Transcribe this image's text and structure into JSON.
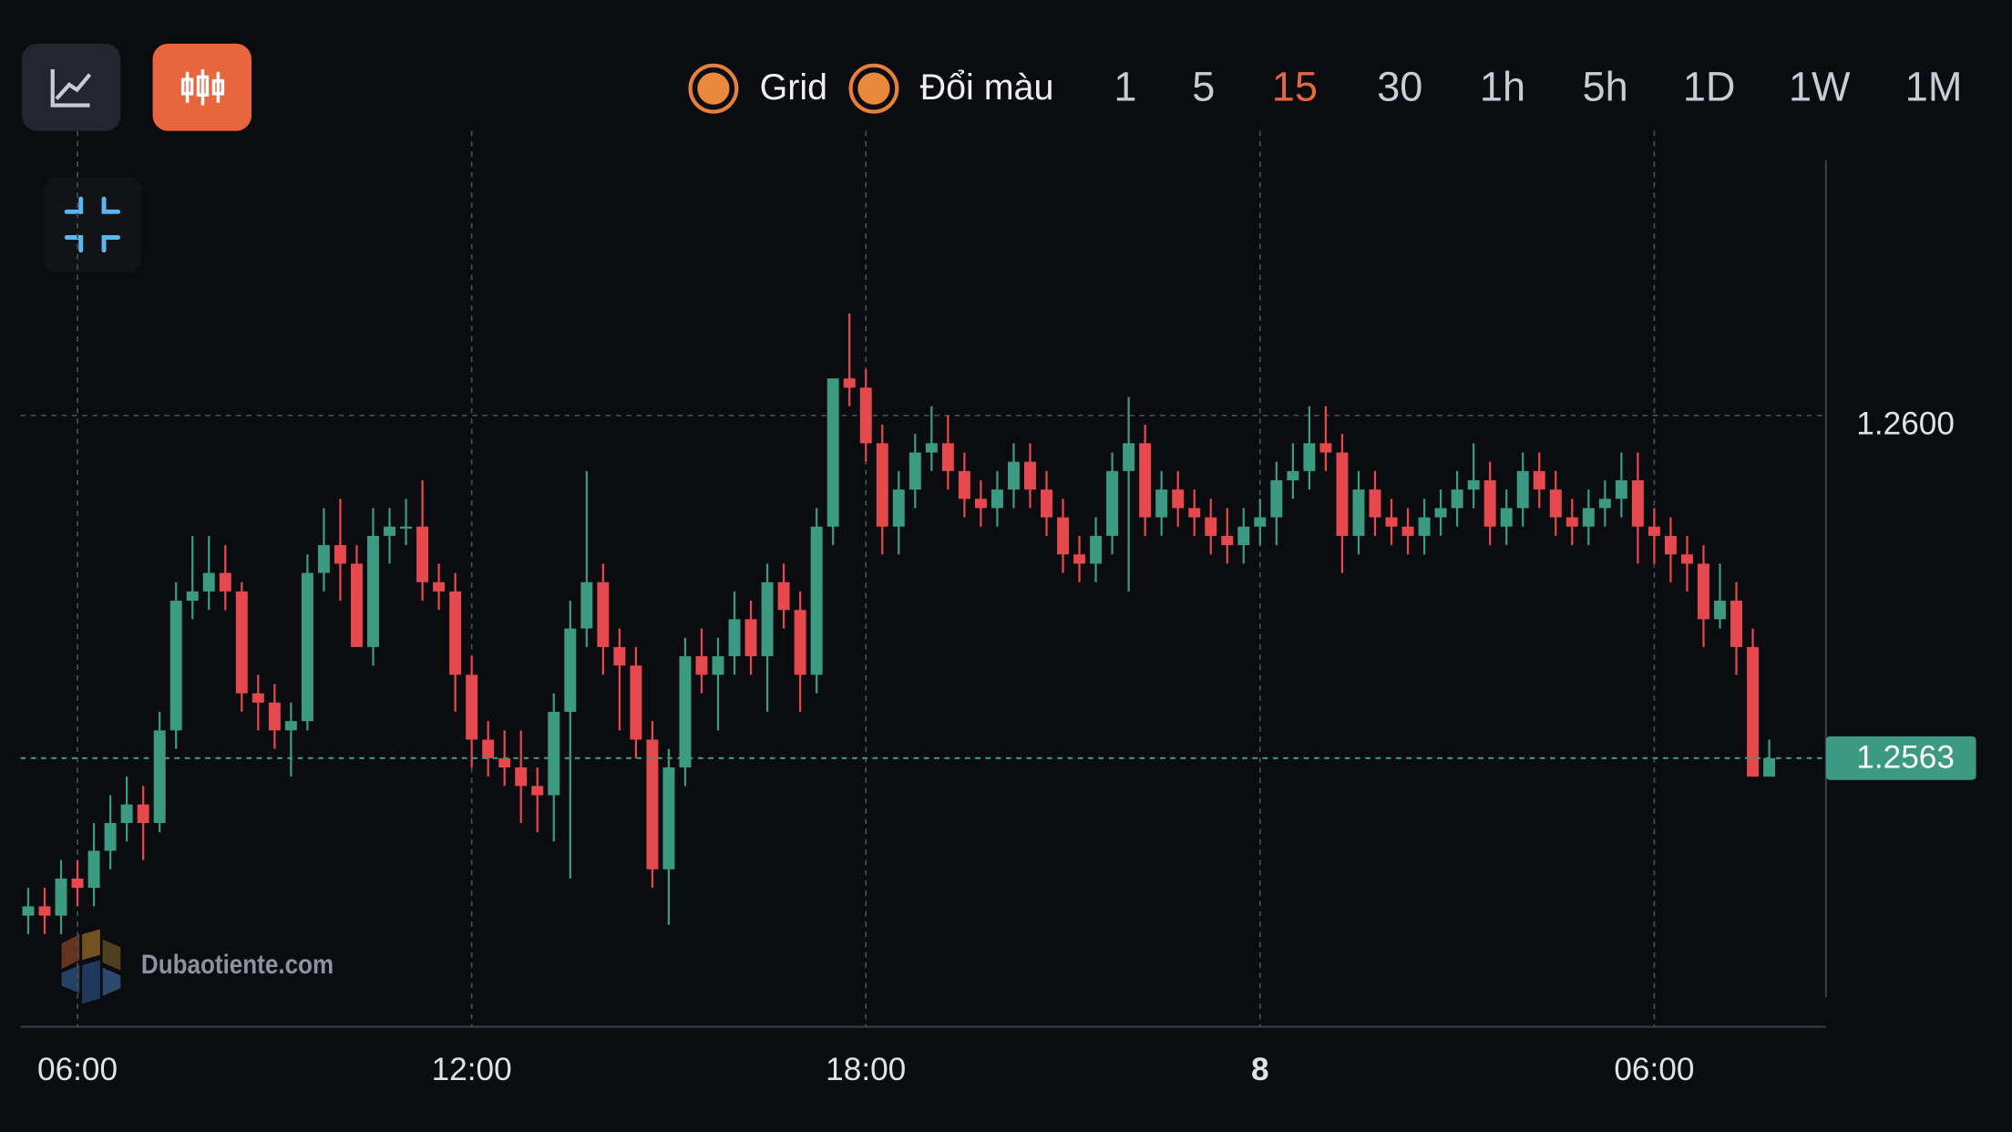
{
  "toolbar": {
    "toggles": [
      "Grid",
      "Đổi màu"
    ],
    "timeframes": [
      "1",
      "5",
      "15",
      "30",
      "1h",
      "5h",
      "1D",
      "1W",
      "1M"
    ],
    "active_timeframe": 2
  },
  "watermark": "Dubaotiente.com",
  "chart_data": {
    "type": "candlestick",
    "categories": [
      null,
      null,
      null,
      "06:00",
      null,
      null,
      null,
      null,
      null,
      null,
      null,
      null,
      null,
      null,
      null,
      null,
      null,
      null,
      null,
      null,
      null,
      null,
      null,
      null,
      null,
      null,
      null,
      "12:00",
      null,
      null,
      null,
      null,
      null,
      null,
      null,
      null,
      null,
      null,
      null,
      null,
      null,
      null,
      null,
      null,
      null,
      null,
      null,
      null,
      null,
      null,
      null,
      "18:00",
      null,
      null,
      null,
      null,
      null,
      null,
      null,
      null,
      null,
      null,
      null,
      null,
      null,
      null,
      null,
      null,
      null,
      null,
      null,
      null,
      null,
      null,
      null,
      "8",
      null,
      null,
      null,
      null,
      null,
      null,
      null,
      null,
      null,
      null,
      null,
      null,
      null,
      null,
      null,
      null,
      null,
      null,
      null,
      null,
      null,
      null,
      null,
      "06:00",
      null,
      null,
      null,
      null,
      null,
      null,
      null
    ],
    "open": [
      1.2546,
      1.2547,
      1.2546,
      1.255,
      1.2549,
      1.2553,
      1.2556,
      1.2558,
      1.2556,
      1.2566,
      1.258,
      1.2581,
      1.2583,
      1.2581,
      1.257,
      1.2569,
      1.2566,
      1.2567,
      1.2583,
      1.2586,
      1.2584,
      1.2575,
      1.2587,
      1.2588,
      1.2588,
      1.2582,
      1.2581,
      1.2572,
      1.2565,
      1.2563,
      1.2562,
      1.256,
      1.2559,
      1.2568,
      1.2577,
      1.2582,
      1.2575,
      1.2573,
      1.2565,
      1.2551,
      1.2562,
      1.2574,
      1.2572,
      1.2574,
      1.2578,
      1.2574,
      1.2582,
      1.2579,
      1.2572,
      1.2588,
      1.2604,
      1.2603,
      1.2597,
      1.2588,
      1.2592,
      1.2596,
      1.2597,
      1.2594,
      1.2591,
      1.259,
      1.2592,
      1.2595,
      1.2592,
      1.2589,
      1.2585,
      1.2584,
      1.2587,
      1.2594,
      1.2597,
      1.2589,
      1.2592,
      1.259,
      1.2589,
      1.2587,
      1.2586,
      1.2588,
      1.2589,
      1.2593,
      1.2594,
      1.2597,
      1.2596,
      1.2587,
      1.2592,
      1.2589,
      1.2588,
      1.2587,
      1.2589,
      1.259,
      1.2592,
      1.2593,
      1.2588,
      1.259,
      1.2594,
      1.2592,
      1.2589,
      1.2588,
      1.259,
      1.2591,
      1.2593,
      1.2588,
      1.2587,
      1.2585,
      1.2584,
      1.2578,
      1.258,
      1.2575,
      1.2561
    ],
    "high": [
      1.2549,
      1.2549,
      1.2552,
      1.2552,
      1.2556,
      1.2559,
      1.2561,
      1.256,
      1.2568,
      1.2582,
      1.2587,
      1.2587,
      1.2586,
      1.2582,
      1.2572,
      1.2571,
      1.2569,
      1.2585,
      1.259,
      1.2591,
      1.2586,
      1.259,
      1.259,
      1.2591,
      1.2593,
      1.2584,
      1.2583,
      1.2574,
      1.2567,
      1.2566,
      1.2566,
      1.2562,
      1.257,
      1.258,
      1.2594,
      1.2584,
      1.2577,
      1.2575,
      1.2567,
      1.2564,
      1.2576,
      1.2577,
      1.2576,
      1.2581,
      1.258,
      1.2584,
      1.2584,
      1.2581,
      1.259,
      1.2604,
      1.2611,
      1.2605,
      1.2599,
      1.2594,
      1.2598,
      1.2601,
      1.26,
      1.2596,
      1.2593,
      1.2594,
      1.2597,
      1.2597,
      1.2594,
      1.2591,
      1.2587,
      1.2589,
      1.2596,
      1.2602,
      1.2599,
      1.2594,
      1.2594,
      1.2592,
      1.2591,
      1.259,
      1.259,
      1.2591,
      1.2595,
      1.2597,
      1.2601,
      1.2601,
      1.2598,
      1.2594,
      1.2594,
      1.2591,
      1.259,
      1.2591,
      1.2592,
      1.2594,
      1.2597,
      1.2595,
      1.2592,
      1.2596,
      1.2596,
      1.2594,
      1.2591,
      1.2592,
      1.2593,
      1.2596,
      1.2596,
      1.259,
      1.2589,
      1.2587,
      1.2586,
      1.2584,
      1.2582,
      1.2577,
      1.2565
    ],
    "low": [
      1.2544,
      1.2544,
      1.2544,
      1.2547,
      1.2547,
      1.2551,
      1.2554,
      1.2552,
      1.2555,
      1.2564,
      1.2578,
      1.2579,
      1.2579,
      1.2568,
      1.2566,
      1.2564,
      1.2561,
      1.2566,
      1.2581,
      1.258,
      1.2575,
      1.2573,
      1.2584,
      1.2586,
      1.258,
      1.2579,
      1.2568,
      1.2562,
      1.2561,
      1.256,
      1.2556,
      1.2555,
      1.2554,
      1.255,
      1.2575,
      1.2572,
      1.2566,
      1.2563,
      1.2549,
      1.2545,
      1.256,
      1.257,
      1.2566,
      1.2572,
      1.2572,
      1.2568,
      1.2577,
      1.2568,
      1.257,
      1.2586,
      1.2601,
      1.2595,
      1.2585,
      1.2585,
      1.259,
      1.2594,
      1.2592,
      1.2589,
      1.2588,
      1.2588,
      1.259,
      1.259,
      1.2587,
      1.2583,
      1.2582,
      1.2582,
      1.2585,
      1.2581,
      1.2587,
      1.2587,
      1.2588,
      1.2587,
      1.2585,
      1.2584,
      1.2584,
      1.2586,
      1.2586,
      1.2591,
      1.2592,
      1.2594,
      1.2583,
      1.2585,
      1.2587,
      1.2586,
      1.2585,
      1.2585,
      1.2587,
      1.2588,
      1.259,
      1.2586,
      1.2586,
      1.2588,
      1.259,
      1.2587,
      1.2586,
      1.2586,
      1.2588,
      1.2589,
      1.2584,
      1.2584,
      1.2582,
      1.2581,
      1.2575,
      1.2577,
      1.2572,
      1.2561,
      1.2561
    ],
    "close": [
      1.2547,
      1.2546,
      1.255,
      1.2549,
      1.2553,
      1.2556,
      1.2558,
      1.2556,
      1.2566,
      1.258,
      1.2581,
      1.2583,
      1.2581,
      1.257,
      1.2569,
      1.2566,
      1.2567,
      1.2583,
      1.2586,
      1.2584,
      1.2575,
      1.2587,
      1.2588,
      1.2588,
      1.2582,
      1.2581,
      1.2572,
      1.2565,
      1.2563,
      1.2562,
      1.256,
      1.2559,
      1.2568,
      1.2577,
      1.2582,
      1.2575,
      1.2573,
      1.2565,
      1.2551,
      1.2562,
      1.2574,
      1.2572,
      1.2574,
      1.2578,
      1.2574,
      1.2582,
      1.2579,
      1.2572,
      1.2588,
      1.2604,
      1.2603,
      1.2597,
      1.2588,
      1.2592,
      1.2596,
      1.2597,
      1.2594,
      1.2591,
      1.259,
      1.2592,
      1.2595,
      1.2592,
      1.2589,
      1.2585,
      1.2584,
      1.2587,
      1.2594,
      1.2597,
      1.2589,
      1.2592,
      1.259,
      1.2589,
      1.2587,
      1.2586,
      1.2588,
      1.2589,
      1.2593,
      1.2594,
      1.2597,
      1.2596,
      1.2587,
      1.2592,
      1.2589,
      1.2588,
      1.2587,
      1.2589,
      1.259,
      1.2592,
      1.2593,
      1.2588,
      1.259,
      1.2594,
      1.2592,
      1.2589,
      1.2588,
      1.259,
      1.2591,
      1.2593,
      1.2588,
      1.2587,
      1.2585,
      1.2584,
      1.2578,
      1.258,
      1.2575,
      1.2561,
      1.2563
    ],
    "up_color": "#3b9a80",
    "down_color": "#e5484d",
    "ylim": [
      1.2534,
      1.2631
    ],
    "yticks": [
      {
        "value": 1.26,
        "label": "1.2600"
      }
    ],
    "grid": true,
    "last_price": 1.2563
  }
}
